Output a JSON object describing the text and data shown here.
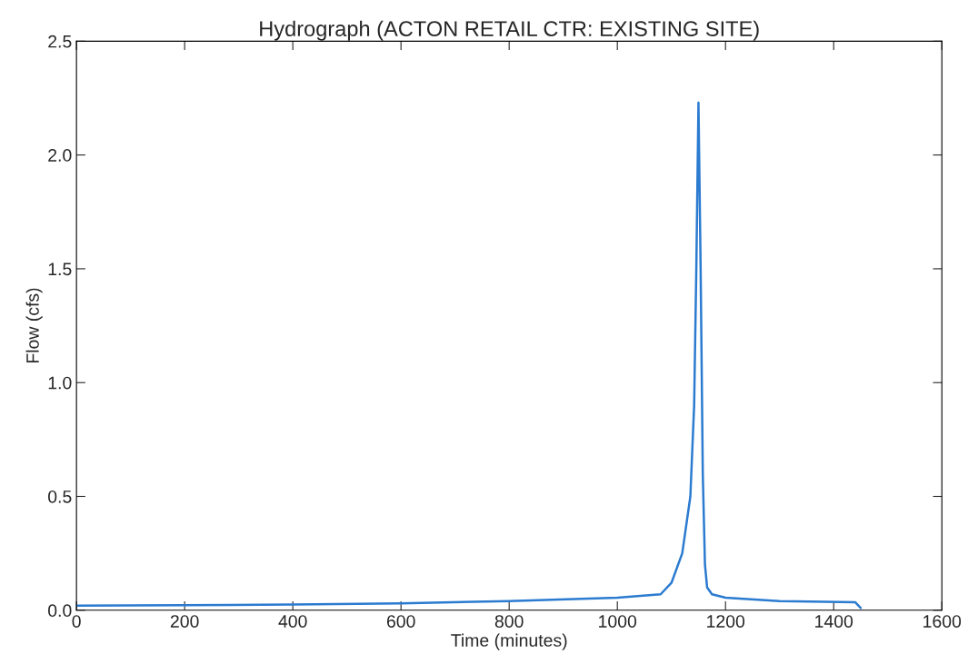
{
  "chart_data": {
    "type": "line",
    "title": "Hydrograph (ACTON RETAIL CTR: EXISTING SITE)",
    "xlabel": "Time (minutes)",
    "ylabel": "Flow (cfs)",
    "x": [
      0,
      200,
      400,
      600,
      800,
      1000,
      1080,
      1100,
      1120,
      1135,
      1142,
      1146,
      1150,
      1154,
      1158,
      1162,
      1166,
      1175,
      1200,
      1300,
      1440,
      1450
    ],
    "series": [
      {
        "color": "#2b7bd0",
        "values": [
          0.02,
          0.022,
          0.025,
          0.03,
          0.04,
          0.055,
          0.07,
          0.12,
          0.25,
          0.5,
          0.9,
          1.5,
          2.23,
          1.5,
          0.6,
          0.2,
          0.1,
          0.07,
          0.055,
          0.04,
          0.035,
          0.01
        ]
      }
    ],
    "xlim": [
      0,
      1600
    ],
    "ylim": [
      0,
      2.5
    ],
    "xticks": [
      0,
      200,
      400,
      600,
      800,
      1000,
      1200,
      1400,
      1600
    ],
    "yticks": [
      {
        "value": 0,
        "label": "0.0"
      },
      {
        "value": 0.5,
        "label": "0.5"
      },
      {
        "value": 1,
        "label": "1.0"
      },
      {
        "value": 1.5,
        "label": "1.5"
      },
      {
        "value": 2,
        "label": "2.0"
      },
      {
        "value": 2.5,
        "label": "2.5"
      }
    ],
    "grid": false,
    "legend": false
  }
}
